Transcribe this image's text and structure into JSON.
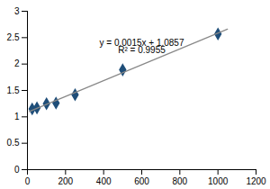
{
  "chart_data": {
    "type": "scatter",
    "series": [
      {
        "type": "scatter",
        "x": [
          25,
          50,
          100,
          150,
          250,
          500,
          1000
        ],
        "values": [
          1.15,
          1.17,
          1.25,
          1.26,
          1.42,
          1.89,
          2.57
        ],
        "color": "#1F4E79",
        "marker": "diamond"
      },
      {
        "type": "line",
        "x": [
          10,
          1050
        ],
        "values": [
          1.1007,
          2.6607
        ],
        "color": "#888888"
      }
    ],
    "annotations": [
      {
        "text": "y = 0.0015x + 1.0857",
        "x": 600,
        "y": 2.35
      },
      {
        "text": "R² = 0.9955",
        "x": 600,
        "y": 2.2
      }
    ],
    "xlim": [
      0,
      1200
    ],
    "ylim": [
      0,
      3
    ],
    "xticks": [
      0,
      200,
      400,
      600,
      800,
      1000,
      1200
    ],
    "yticks": [
      0,
      0.5,
      1,
      1.5,
      2,
      2.5,
      3
    ],
    "grid": false
  }
}
